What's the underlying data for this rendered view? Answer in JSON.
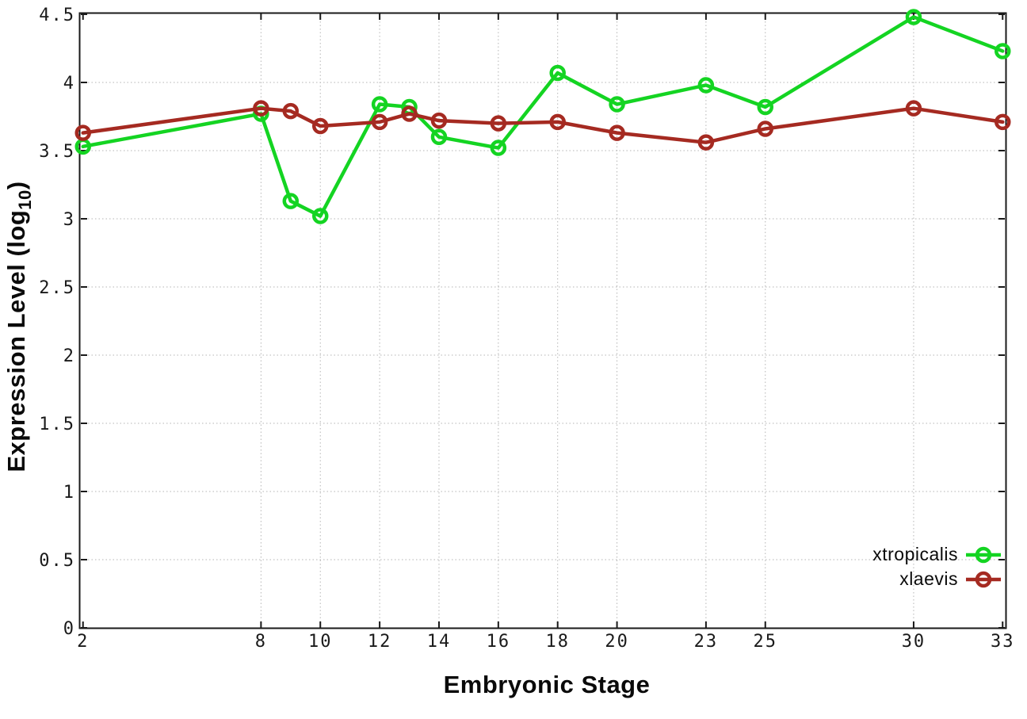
{
  "chart_data": {
    "type": "line",
    "title": "",
    "xlabel": "Embryonic Stage",
    "ylabel_prefix": "Expression Level (log",
    "ylabel_sub": "10",
    "ylabel_suffix": ")",
    "x": [
      2,
      8,
      9,
      10,
      12,
      13,
      14,
      16,
      18,
      20,
      23,
      25,
      30,
      33
    ],
    "x_tick_labels": [
      "2",
      "8",
      "10",
      "12",
      "14",
      "16",
      "18",
      "20",
      "23",
      "25",
      "30",
      "33"
    ],
    "x_ticks": [
      2,
      8,
      10,
      12,
      14,
      16,
      18,
      20,
      23,
      25,
      30,
      33
    ],
    "y_ticks": [
      0,
      0.5,
      1,
      1.5,
      2,
      2.5,
      3,
      3.5,
      4,
      4.5
    ],
    "y_tick_labels": [
      "0",
      "0.5",
      "1",
      "1.5",
      "2",
      "2.5",
      "3",
      "3.5",
      "4",
      "4.5"
    ],
    "xlim": [
      2,
      33
    ],
    "ylim": [
      0,
      4.5
    ],
    "grid": true,
    "grid_color": "#b5b5b5",
    "axis_color": "#1a1a1a",
    "legend_position": "bottom-right-inside",
    "series": [
      {
        "name": "xtropicalis",
        "color": "#14d422",
        "values": [
          3.53,
          3.77,
          3.13,
          3.02,
          3.84,
          3.82,
          3.6,
          3.52,
          4.07,
          3.84,
          3.98,
          3.82,
          4.48,
          4.23
        ]
      },
      {
        "name": "xlaevis",
        "color": "#a52a21",
        "values": [
          3.63,
          3.81,
          3.79,
          3.68,
          3.71,
          3.77,
          3.72,
          3.7,
          3.71,
          3.63,
          3.56,
          3.66,
          3.81,
          3.71
        ]
      }
    ]
  }
}
